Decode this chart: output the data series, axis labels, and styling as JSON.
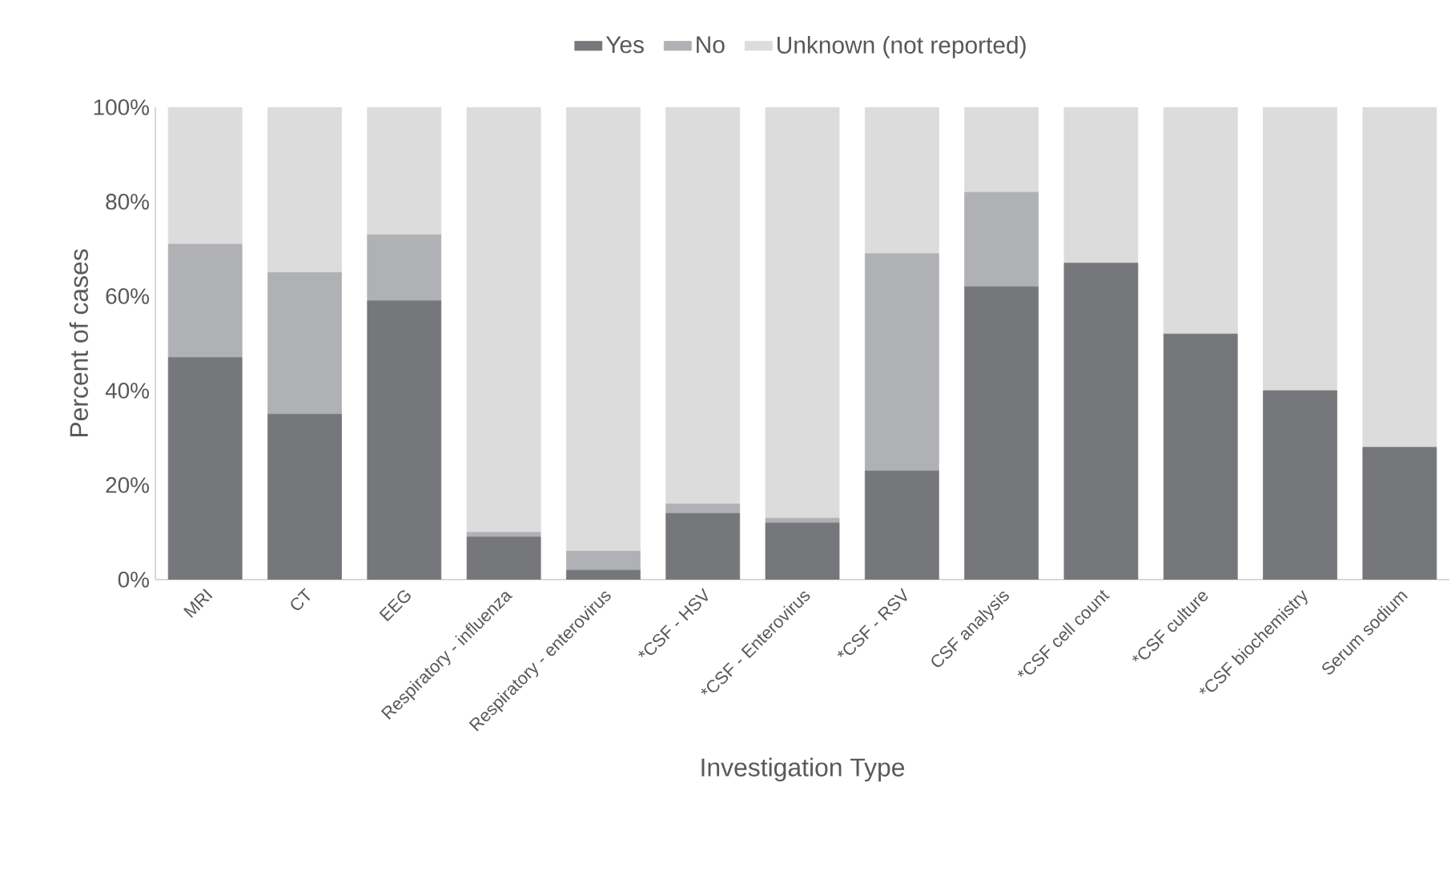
{
  "chart_data": {
    "type": "bar",
    "stacked": true,
    "xlabel": "Investigation Type",
    "ylabel": "Percent of cases",
    "categories": [
      "MRI",
      "CT",
      "EEG",
      "Respiratory - influenza",
      "Respiratory - enterovirus",
      "*CSF - HSV",
      "*CSF - Enterovirus",
      "*CSF - RSV",
      "CSF analysis",
      "*CSF cell count",
      "*CSF culture",
      "*CSF biochemistry",
      "Serum sodium"
    ],
    "series": [
      {
        "name": "Yes",
        "color": "#76777b",
        "values": [
          47,
          35,
          59,
          9,
          2,
          14,
          12,
          23,
          62,
          67,
          52,
          40,
          28
        ]
      },
      {
        "name": "No",
        "color": "#b0b1b4",
        "values": [
          24,
          30,
          14,
          1,
          4,
          2,
          1,
          46,
          20,
          0,
          0,
          0,
          0
        ]
      },
      {
        "name": "Unknown (not reported)",
        "color": "#dcdcdd",
        "values": [
          29,
          35,
          27,
          90,
          94,
          84,
          87,
          31,
          18,
          33,
          48,
          60,
          72
        ]
      }
    ],
    "ylim": [
      0,
      100
    ],
    "yticks": [
      {
        "value": 0,
        "label": "0%"
      },
      {
        "value": 20,
        "label": "20%"
      },
      {
        "value": 40,
        "label": "40%"
      },
      {
        "value": 60,
        "label": "60%"
      },
      {
        "value": 80,
        "label": "80%"
      },
      {
        "value": 100,
        "label": "100%"
      }
    ],
    "grid": false,
    "legend": "top"
  }
}
